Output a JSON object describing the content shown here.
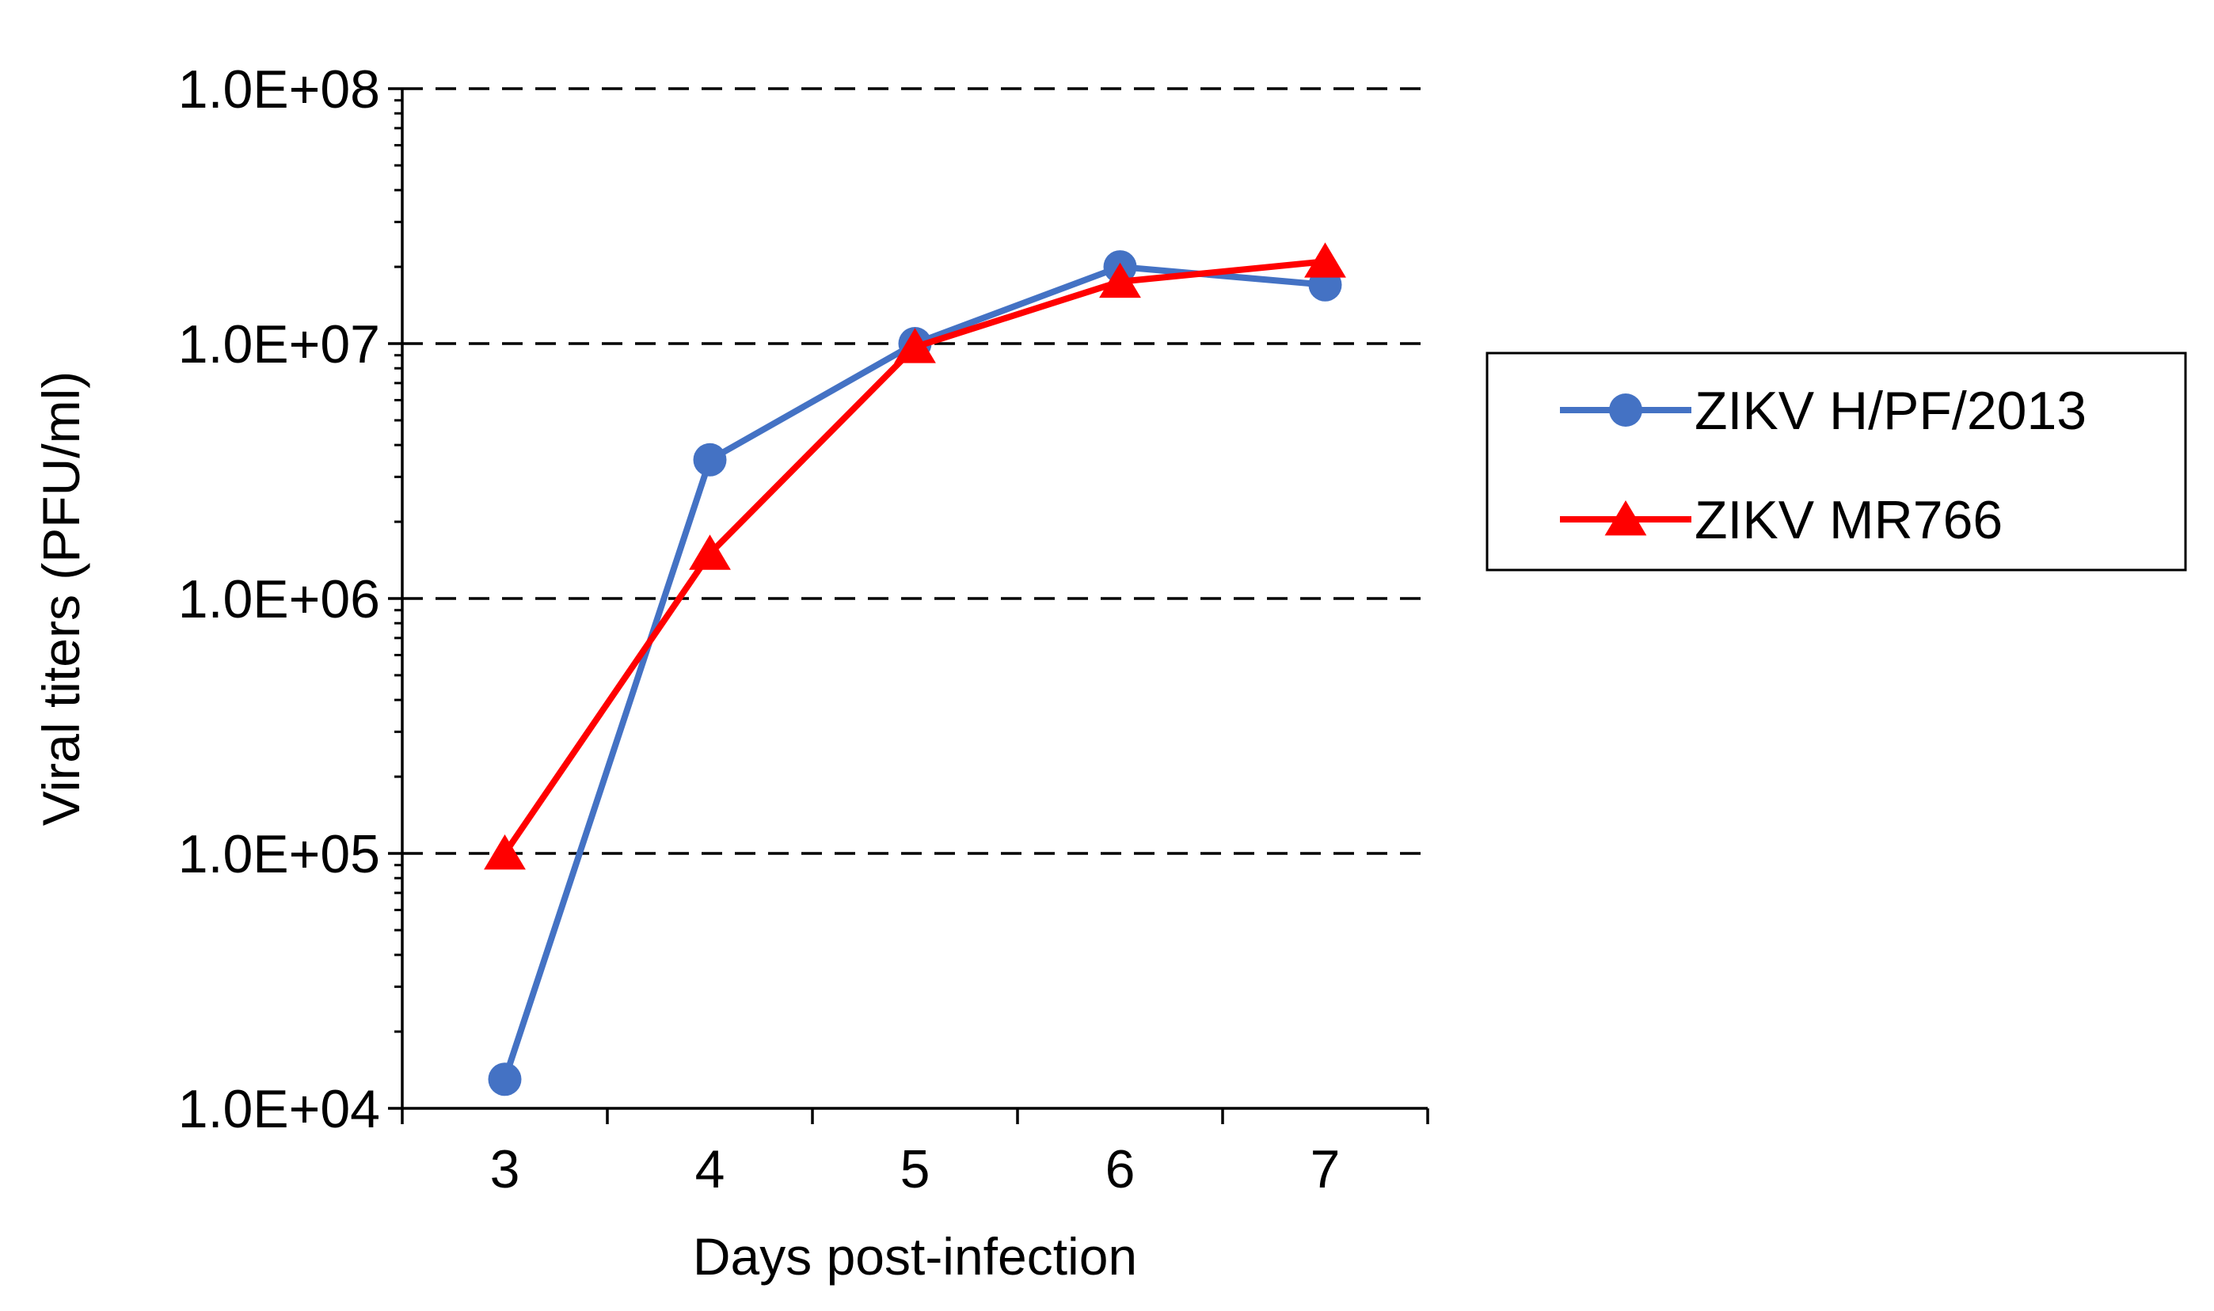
{
  "chart_data": {
    "type": "line",
    "title": "",
    "xlabel": "Days post-infection",
    "ylabel": "Viral titers (PFU/ml)",
    "y_scale": "log10",
    "ylim": [
      10000,
      100000000
    ],
    "xlim": [
      2.5,
      7.5
    ],
    "grid": "horizontal dashed at major ticks",
    "legend_position": "right",
    "x": [
      3,
      4,
      5,
      6,
      7
    ],
    "x_tick_labels": [
      "3",
      "4",
      "5",
      "6",
      "7"
    ],
    "y_tick_values": [
      10000,
      100000,
      1000000,
      10000000,
      100000000
    ],
    "y_tick_labels": [
      "1.0E+04",
      "1.0E+05",
      "1.0E+06",
      "1.0E+07",
      "1.0E+08"
    ],
    "series": [
      {
        "name": "ZIKV H/PF/2013",
        "color": "#4472C4",
        "marker": "circle",
        "values": [
          13000,
          3500000,
          10000000,
          20000000,
          17000000
        ]
      },
      {
        "name": "ZIKV MR766",
        "color": "#FF0000",
        "marker": "triangle",
        "values": [
          100000,
          1500000,
          9700000,
          17500000,
          21000000
        ]
      }
    ]
  }
}
